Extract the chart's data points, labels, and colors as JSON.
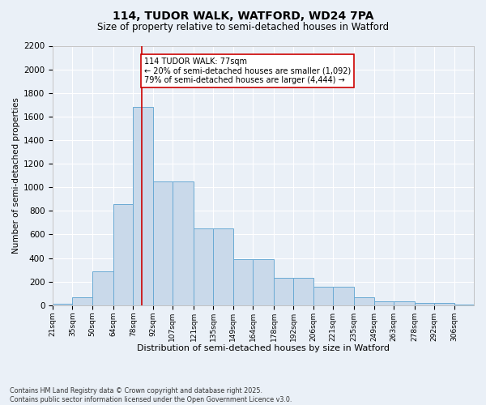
{
  "title1": "114, TUDOR WALK, WATFORD, WD24 7PA",
  "title2": "Size of property relative to semi-detached houses in Watford",
  "xlabel": "Distribution of semi-detached houses by size in Watford",
  "ylabel": "Number of semi-detached properties",
  "footnote1": "Contains HM Land Registry data © Crown copyright and database right 2025.",
  "footnote2": "Contains public sector information licensed under the Open Government Licence v3.0.",
  "annotation_line1": "114 TUDOR WALK: 77sqm",
  "annotation_line2": "← 20% of semi-detached houses are smaller (1,092)",
  "annotation_line3": "79% of semi-detached houses are larger (4,444) →",
  "bar_color": "#c9d9ea",
  "bar_edge_color": "#6aaad4",
  "red_line_x": 77,
  "categories": [
    "21sqm",
    "35sqm",
    "50sqm",
    "64sqm",
    "78sqm",
    "92sqm",
    "107sqm",
    "121sqm",
    "135sqm",
    "149sqm",
    "164sqm",
    "178sqm",
    "192sqm",
    "206sqm",
    "221sqm",
    "235sqm",
    "249sqm",
    "263sqm",
    "278sqm",
    "292sqm",
    "306sqm"
  ],
  "bin_left": [
    14,
    28,
    42,
    57,
    71,
    85,
    99,
    114,
    128,
    142,
    156,
    171,
    185,
    199,
    213,
    228,
    242,
    256,
    271,
    285,
    299
  ],
  "bin_right": [
    28,
    42,
    57,
    71,
    85,
    99,
    114,
    128,
    142,
    156,
    171,
    185,
    199,
    213,
    228,
    242,
    256,
    271,
    285,
    299,
    313
  ],
  "values": [
    10,
    70,
    290,
    855,
    1680,
    1050,
    1050,
    650,
    650,
    390,
    390,
    230,
    230,
    155,
    155,
    70,
    30,
    30,
    20,
    20,
    5
  ],
  "ylim": [
    0,
    2200
  ],
  "yticks": [
    0,
    200,
    400,
    600,
    800,
    1000,
    1200,
    1400,
    1600,
    1800,
    2000,
    2200
  ],
  "bg_color": "#eaf0f7",
  "plot_bg_color": "#eaf0f7",
  "grid_color": "#ffffff",
  "annotation_box_facecolor": "#ffffff",
  "annotation_box_edgecolor": "#cc0000",
  "red_line_color": "#cc0000",
  "title1_fontsize": 10,
  "title2_fontsize": 8.5,
  "xlabel_fontsize": 8,
  "ylabel_fontsize": 7.5,
  "ytick_fontsize": 7.5,
  "xtick_fontsize": 6.5,
  "footnote_fontsize": 5.8,
  "annotation_fontsize": 7
}
